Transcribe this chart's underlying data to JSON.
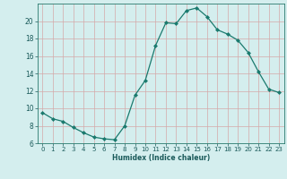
{
  "x": [
    0,
    1,
    2,
    3,
    4,
    5,
    6,
    7,
    8,
    9,
    10,
    11,
    12,
    13,
    14,
    15,
    16,
    17,
    18,
    19,
    20,
    21,
    22,
    23
  ],
  "y": [
    9.5,
    8.8,
    8.5,
    7.8,
    7.2,
    6.7,
    6.5,
    6.4,
    8.0,
    11.5,
    13.2,
    17.2,
    19.8,
    19.7,
    21.2,
    21.5,
    20.5,
    19.0,
    18.5,
    17.8,
    16.4,
    14.2,
    12.2,
    11.8
  ],
  "line_color": "#1a7a6e",
  "marker": "D",
  "marker_size": 2.0,
  "bg_color": "#d4eeee",
  "red_grid_color": "#d4a8a8",
  "teal_grid_color": "#9ecece",
  "xlabel": "Humidex (Indice chaleur)",
  "ylim": [
    6,
    22
  ],
  "xlim": [
    -0.5,
    23.5
  ],
  "yticks": [
    6,
    8,
    10,
    12,
    14,
    16,
    18,
    20
  ],
  "xticks": [
    0,
    1,
    2,
    3,
    4,
    5,
    6,
    7,
    8,
    9,
    10,
    11,
    12,
    13,
    14,
    15,
    16,
    17,
    18,
    19,
    20,
    21,
    22,
    23
  ],
  "xlabel_fontsize": 5.5,
  "tick_fontsize": 5.0,
  "spine_color": "#2a7a6e",
  "text_color": "#1a5a5a"
}
